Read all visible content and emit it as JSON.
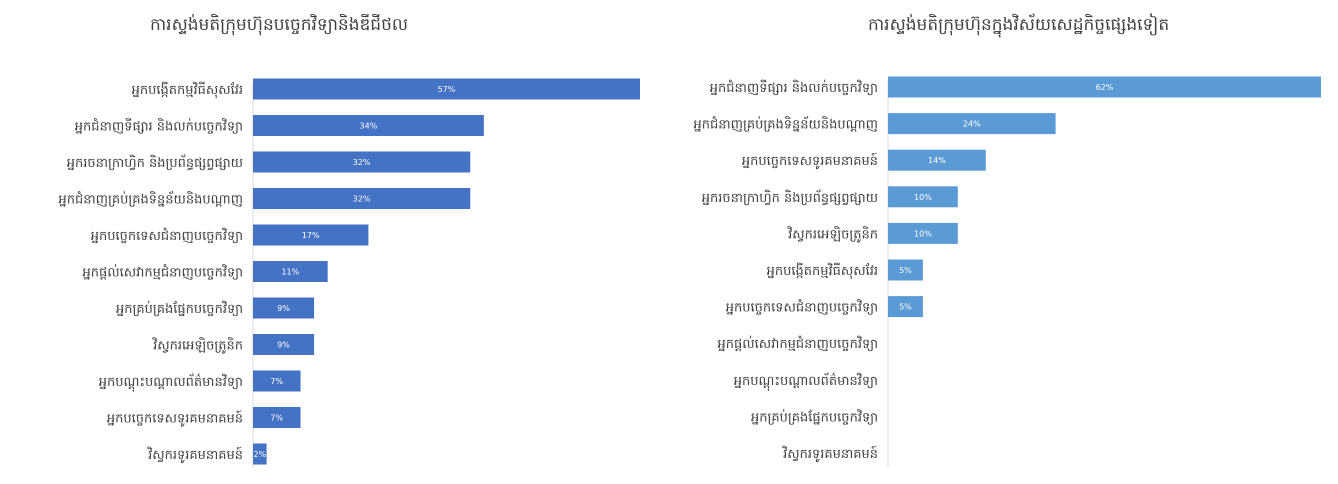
{
  "chart_data": [
    {
      "type": "bar",
      "orientation": "horizontal",
      "title": "ការស្ទង់មតិក្រុមហ៊ុនបច្ចេកវិទ្យានិងឌីជីថល",
      "xlim": [
        0,
        57
      ],
      "color": "#4472c4",
      "categories": [
        "អ្នកបង្កើតកម្មវិធីសុសវែរ",
        "អ្នកជំនាញទីផ្សារ និងលក់បច្ចេកវិទ្យា",
        "អ្នករចនាក្រាហ្វិក និងប្រព័ន្ធផ្សព្វផ្សាយ",
        "អ្នកជំនាញគ្រប់គ្រងទិន្នន័យនិងបណ្តាញ",
        "អ្នកបច្ចេកទេសជំនាញបច្ចេកវិទ្យា",
        "អ្នកផ្តល់សេវាកម្មជំនាញបច្ចេកវិទ្យា",
        "អ្នកគ្រប់គ្រងផ្នែកបច្ចេកវិទ្យា",
        "វិស្វករអេឡិចត្រូនិក",
        "អ្នកបណ្តុះបណ្តាលព័ត៌មានវិទ្យា",
        "អ្នកបច្ចេកទេសទូរគមនាគមន៍",
        "វិស្វករទូរគមនាគមន៍"
      ],
      "values": [
        57,
        34,
        32,
        32,
        17,
        11,
        9,
        9,
        7,
        7,
        2
      ],
      "labels": [
        "57%",
        "34%",
        "32%",
        "32%",
        "17%",
        "11%",
        "9%",
        "9%",
        "7%",
        "7%",
        "2%"
      ]
    },
    {
      "type": "bar",
      "orientation": "horizontal",
      "title": "ការស្ទង់មតិក្រុមហ៊ុនក្នុងវិស័យសេដ្ឋកិច្ចផ្សេងទៀត",
      "xlim": [
        0,
        62
      ],
      "color": "#5b9bd5",
      "categories": [
        "អ្នកជំនាញទីផ្សារ និងលក់បច្ចេកវិទ្យា",
        "អ្នកជំនាញគ្រប់គ្រងទិន្នន័យនិងបណ្តាញ",
        "អ្នកបច្ចេកទេសទូរគមនាគមន៍",
        "អ្នករចនាក្រាហ្វិក និងប្រព័ន្ធផ្សព្វផ្សាយ",
        "វិស្វករអេឡិចត្រូនិក",
        "អ្នកបង្កើតកម្មវិធីសុសវែរ",
        "អ្នកបច្ចេកទេសជំនាញបច្ចេកវិទ្យា",
        "អ្នកផ្តល់សេវាកម្មជំនាញបច្ចេកវិទ្យា",
        "អ្នកបណ្តុះបណ្តាលព័ត៌មានវិទ្យា",
        "អ្នកគ្រប់គ្រងផ្នែកបច្ចេកវិទ្យា",
        "វិស្វករទូរគមនាគមន៍"
      ],
      "values": [
        62,
        24,
        14,
        10,
        10,
        5,
        5,
        0,
        0,
        0,
        0
      ],
      "labels": [
        "62%",
        "24%",
        "14%",
        "10%",
        "10%",
        "5%",
        "5%",
        "",
        "",
        "",
        ""
      ]
    }
  ]
}
